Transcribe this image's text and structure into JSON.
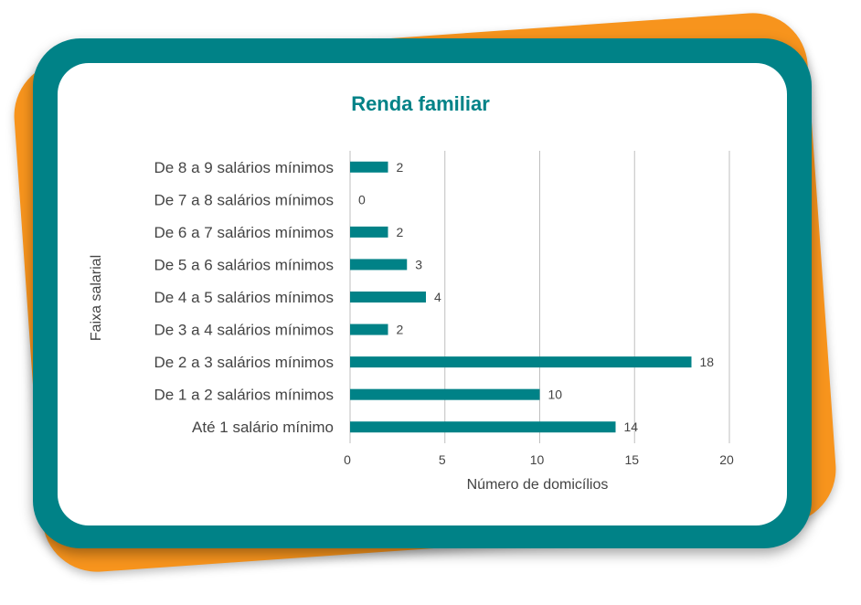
{
  "colors": {
    "accent": "#008287",
    "frame_back": "#f7941d",
    "bar": "#008287",
    "grid": "#bfbfbf",
    "text": "#444444"
  },
  "chart_data": {
    "type": "bar",
    "orientation": "horizontal",
    "title": "Renda familiar",
    "xlabel": "Número de domicílios",
    "ylabel": "Faixa salarial",
    "categories": [
      "Até 1 salário mínimo",
      "De 1 a 2 salários mínimos",
      "De 2 a 3 salários mínimos",
      "De 3 a 4 salários mínimos",
      "De 4 a 5 salários mínimos",
      "De 5 a 6 salários mínimos",
      "De 6 a 7 salários mínimos",
      "De 7 a 8 salários mínimos",
      "De 8 a 9 salários mínimos"
    ],
    "values": [
      14,
      10,
      18,
      2,
      4,
      3,
      2,
      0,
      2
    ],
    "xlim": [
      0,
      20
    ],
    "xticks": [
      0,
      5,
      10,
      15,
      20
    ],
    "grid": "vertical",
    "legend": "none",
    "data_labels": true
  }
}
